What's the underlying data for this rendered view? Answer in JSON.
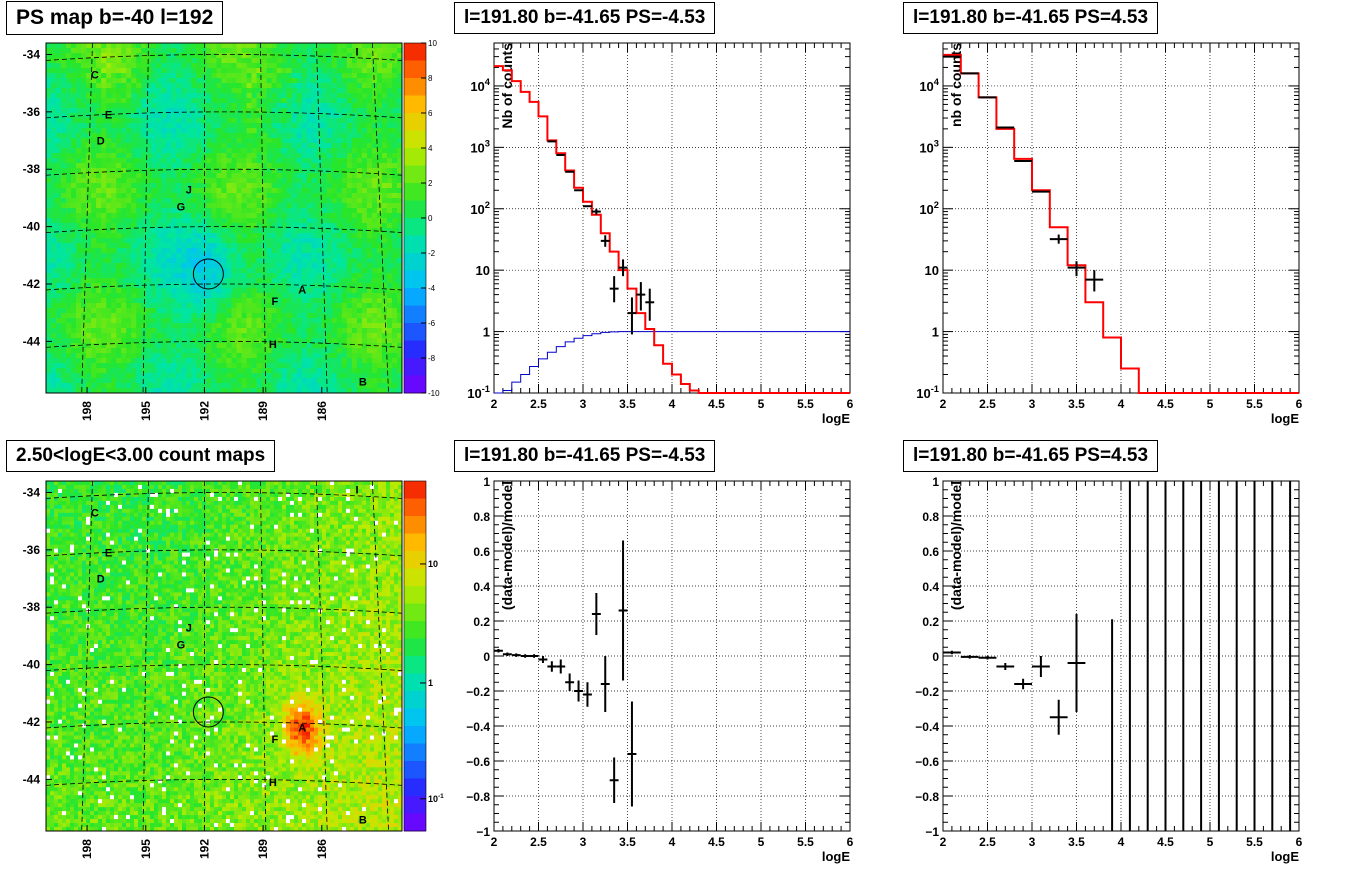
{
  "titles": {
    "map_top": "PS map b=-40 l=192",
    "spec_top_mid": "l=191.80 b=-41.65 PS=-4.53",
    "spec_top_right": "l=191.80 b=-41.65 PS=4.53",
    "map_bottom": "2.50<logE<3.00 count maps",
    "res_bottom_mid": "l=191.80 b=-41.65 PS=-4.53",
    "res_bottom_right": "l=191.80 b=-41.65 PS=4.53"
  },
  "colors": {
    "model": "#ff0000",
    "exposure": "#0000cc",
    "data": "#000000"
  },
  "chart_data": [
    {
      "id": "map_top",
      "type": "heatmap",
      "title": "PS map b=-40 l=192",
      "y_ticks": [
        "-34",
        "-36",
        "-38",
        "-40",
        "-42",
        "-44"
      ],
      "x_ticks": [
        "198",
        "195",
        "192",
        "189",
        "186"
      ],
      "colorbar_ticks": [
        "10",
        "8",
        "6",
        "4",
        "2",
        "0",
        "-2",
        "-4",
        "-6",
        "-8",
        "-10"
      ],
      "colorbar_range": [
        -10,
        10
      ],
      "sources": [
        {
          "label": "C",
          "l": 197.6,
          "b": -34.7
        },
        {
          "label": "E",
          "l": 196.9,
          "b": -36.1
        },
        {
          "label": "D",
          "l": 197.3,
          "b": -37.0
        },
        {
          "label": "J",
          "l": 192.8,
          "b": -38.7
        },
        {
          "label": "G",
          "l": 193.2,
          "b": -39.3
        },
        {
          "label": "A",
          "l": 187.0,
          "b": -42.2
        },
        {
          "label": "F",
          "l": 188.4,
          "b": -42.6
        },
        {
          "label": "H",
          "l": 188.5,
          "b": -44.1
        },
        {
          "label": "B",
          "l": 183.9,
          "b": -45.4
        },
        {
          "label": "I",
          "l": 184.2,
          "b": -33.9
        }
      ],
      "circle": {
        "l": 191.8,
        "b": -41.65
      }
    },
    {
      "id": "spec_top_mid",
      "type": "line",
      "title": "l=191.80 b=-41.65 PS=-4.53",
      "xlabel": "logE",
      "ylabel": "Nb of counts",
      "xlim": [
        2,
        6
      ],
      "ylim": [
        0.1,
        50000
      ],
      "yscale": "log",
      "x_ticks": [
        "2",
        "2.5",
        "3",
        "3.5",
        "4",
        "4.5",
        "5",
        "5.5",
        "6"
      ],
      "y_ticks": [
        "10^-1",
        "1",
        "10",
        "10^2",
        "10^3",
        "10^4"
      ],
      "grid": true,
      "model_step": {
        "edges": [
          2.0,
          2.1,
          2.2,
          2.3,
          2.4,
          2.5,
          2.6,
          2.7,
          2.8,
          2.9,
          3.0,
          3.1,
          3.2,
          3.3,
          3.4,
          3.5,
          3.6,
          3.7,
          3.8,
          3.9,
          4.0,
          4.1,
          4.2,
          4.3,
          6.0
        ],
        "values": [
          21000,
          18000,
          12000,
          8000,
          5500,
          3200,
          1300,
          800,
          420,
          220,
          130,
          80,
          40,
          20,
          10,
          5,
          2,
          1.1,
          0.6,
          0.3,
          0.2,
          0.14,
          0.11,
          0.1
        ]
      },
      "exposure_step": {
        "edges": [
          2.0,
          2.1,
          2.2,
          2.3,
          2.4,
          2.5,
          2.6,
          2.7,
          2.8,
          2.9,
          3.0,
          3.1,
          3.2,
          3.3,
          3.4,
          6.0
        ],
        "values": [
          0.08,
          0.11,
          0.15,
          0.2,
          0.27,
          0.36,
          0.46,
          0.57,
          0.68,
          0.78,
          0.86,
          0.92,
          0.97,
          0.99,
          1.0
        ]
      },
      "data_points": [
        {
          "x": 2.65,
          "y": 1250,
          "xerr": 0.05,
          "ylo": 1250,
          "yhi": 1250
        },
        {
          "x": 2.75,
          "y": 750,
          "xerr": 0.05,
          "ylo": 750,
          "yhi": 750
        },
        {
          "x": 2.85,
          "y": 400,
          "xerr": 0.05,
          "ylo": 400,
          "yhi": 400
        },
        {
          "x": 2.95,
          "y": 200,
          "xerr": 0.05,
          "ylo": 200,
          "yhi": 200
        },
        {
          "x": 3.05,
          "y": 110,
          "xerr": 0.05,
          "ylo": 110,
          "yhi": 110
        },
        {
          "x": 3.15,
          "y": 90,
          "xerr": 0.05,
          "ylo": 80,
          "yhi": 100
        },
        {
          "x": 3.25,
          "y": 30,
          "xerr": 0.05,
          "ylo": 24,
          "yhi": 37
        },
        {
          "x": 3.35,
          "y": 5,
          "xerr": 0.05,
          "ylo": 3,
          "yhi": 8
        },
        {
          "x": 3.45,
          "y": 11,
          "xerr": 0.05,
          "ylo": 8,
          "yhi": 15
        },
        {
          "x": 3.55,
          "y": 2,
          "xerr": 0.05,
          "ylo": 0.9,
          "yhi": 3.6
        },
        {
          "x": 3.65,
          "y": 4,
          "xerr": 0.05,
          "ylo": 2.2,
          "yhi": 6.4
        },
        {
          "x": 3.75,
          "y": 3,
          "xerr": 0.05,
          "ylo": 1.5,
          "yhi": 5
        }
      ]
    },
    {
      "id": "spec_top_right",
      "type": "line",
      "title": "l=191.80 b=-41.65 PS=4.53",
      "xlabel": "logE",
      "ylabel": "nb of counts",
      "xlim": [
        2,
        6
      ],
      "ylim": [
        0.1,
        50000
      ],
      "yscale": "log",
      "x_ticks": [
        "2",
        "2.5",
        "3",
        "3.5",
        "4",
        "4.5",
        "5",
        "5.5",
        "6"
      ],
      "y_ticks": [
        "10^-1",
        "1",
        "10",
        "10^2",
        "10^3",
        "10^4"
      ],
      "grid": true,
      "model_step": {
        "edges": [
          2.0,
          2.2,
          2.4,
          2.6,
          2.8,
          3.0,
          3.2,
          3.4,
          3.6,
          3.8,
          4.0,
          4.2,
          6.0
        ],
        "values": [
          32000,
          16000,
          6500,
          2000,
          650,
          200,
          50,
          12,
          3,
          0.8,
          0.25,
          0.1
        ]
      },
      "data_points": [
        {
          "x": 2.1,
          "y": 30000,
          "xerr": 0.1,
          "ylo": 30000,
          "yhi": 30000
        },
        {
          "x": 2.3,
          "y": 16000,
          "xerr": 0.1,
          "ylo": 16000,
          "yhi": 16000
        },
        {
          "x": 2.5,
          "y": 6500,
          "xerr": 0.1,
          "ylo": 6500,
          "yhi": 6500
        },
        {
          "x": 2.7,
          "y": 2100,
          "xerr": 0.1,
          "ylo": 2100,
          "yhi": 2100
        },
        {
          "x": 2.9,
          "y": 600,
          "xerr": 0.1,
          "ylo": 600,
          "yhi": 600
        },
        {
          "x": 3.1,
          "y": 190,
          "xerr": 0.1,
          "ylo": 190,
          "yhi": 190
        },
        {
          "x": 3.3,
          "y": 32,
          "xerr": 0.1,
          "ylo": 27,
          "yhi": 38
        },
        {
          "x": 3.5,
          "y": 11,
          "xerr": 0.1,
          "ylo": 8,
          "yhi": 14
        },
        {
          "x": 3.7,
          "y": 7,
          "xerr": 0.1,
          "ylo": 4.5,
          "yhi": 10
        }
      ]
    },
    {
      "id": "map_bottom",
      "type": "heatmap",
      "title": "2.50<logE<3.00 count maps",
      "y_ticks": [
        "-34",
        "-36",
        "-38",
        "-40",
        "-42",
        "-44"
      ],
      "x_ticks": [
        "198",
        "195",
        "192",
        "189",
        "186"
      ],
      "colorbar_ticks": [
        "10",
        "1",
        "10^-1"
      ],
      "colorbar_scale": "log",
      "sources": [
        {
          "label": "C",
          "l": 197.6,
          "b": -34.7
        },
        {
          "label": "E",
          "l": 196.9,
          "b": -36.1
        },
        {
          "label": "D",
          "l": 197.3,
          "b": -37.0
        },
        {
          "label": "J",
          "l": 192.8,
          "b": -38.7
        },
        {
          "label": "G",
          "l": 193.2,
          "b": -39.3
        },
        {
          "label": "A",
          "l": 187.0,
          "b": -42.2
        },
        {
          "label": "F",
          "l": 188.4,
          "b": -42.6
        },
        {
          "label": "H",
          "l": 188.5,
          "b": -44.1
        },
        {
          "label": "B",
          "l": 183.9,
          "b": -45.4
        },
        {
          "label": "I",
          "l": 184.2,
          "b": -33.9
        }
      ],
      "circle": {
        "l": 191.8,
        "b": -41.65
      }
    },
    {
      "id": "res_bottom_mid",
      "type": "scatter",
      "title": "l=191.80 b=-41.65 PS=-4.53",
      "xlabel": "logE",
      "ylabel": "(data-model)/model",
      "xlim": [
        2,
        6
      ],
      "ylim": [
        -1,
        1
      ],
      "x_ticks": [
        "2",
        "2.5",
        "3",
        "3.5",
        "4",
        "4.5",
        "5",
        "5.5",
        "6"
      ],
      "y_ticks": [
        "−1",
        "−0.8",
        "−0.6",
        "−0.4",
        "−0.2",
        "0",
        "0.2",
        "0.4",
        "0.6",
        "0.8",
        "1"
      ],
      "grid": true,
      "data_points": [
        {
          "x": 2.05,
          "y": 0.03,
          "xerr": 0.05,
          "yerr": 0.01
        },
        {
          "x": 2.15,
          "y": 0.01,
          "xerr": 0.05,
          "yerr": 0.01
        },
        {
          "x": 2.25,
          "y": 0.005,
          "xerr": 0.05,
          "yerr": 0.01
        },
        {
          "x": 2.35,
          "y": 0.0,
          "xerr": 0.05,
          "yerr": 0.01
        },
        {
          "x": 2.45,
          "y": 0.0,
          "xerr": 0.05,
          "yerr": 0.01
        },
        {
          "x": 2.55,
          "y": -0.02,
          "xerr": 0.05,
          "yerr": 0.02
        },
        {
          "x": 2.65,
          "y": -0.06,
          "xerr": 0.05,
          "yerr": 0.03
        },
        {
          "x": 2.75,
          "y": -0.06,
          "xerr": 0.05,
          "yerr": 0.04
        },
        {
          "x": 2.85,
          "y": -0.15,
          "xerr": 0.05,
          "yerr": 0.05
        },
        {
          "x": 2.95,
          "y": -0.2,
          "xerr": 0.05,
          "yerr": 0.06
        },
        {
          "x": 3.05,
          "y": -0.22,
          "xerr": 0.05,
          "yerr": 0.07
        },
        {
          "x": 3.15,
          "y": 0.24,
          "xerr": 0.05,
          "yerr": 0.12
        },
        {
          "x": 3.25,
          "y": -0.16,
          "xerr": 0.05,
          "yerr": 0.16
        },
        {
          "x": 3.35,
          "y": -0.71,
          "xerr": 0.05,
          "yerr": 0.13
        },
        {
          "x": 3.45,
          "y": 0.26,
          "xerr": 0.05,
          "yerr": 0.4
        },
        {
          "x": 3.55,
          "y": -0.56,
          "xerr": 0.05,
          "yerr": 0.3
        }
      ]
    },
    {
      "id": "res_bottom_right",
      "type": "scatter",
      "title": "l=191.80 b=-41.65 PS=4.53",
      "xlabel": "logE",
      "ylabel": "(data-model)/model",
      "xlim": [
        2,
        6
      ],
      "ylim": [
        -1,
        1
      ],
      "x_ticks": [
        "2",
        "2.5",
        "3",
        "3.5",
        "4",
        "4.5",
        "5",
        "5.5",
        "6"
      ],
      "y_ticks": [
        "−1",
        "−0.8",
        "−0.6",
        "−0.4",
        "−0.2",
        "0",
        "0.2",
        "0.4",
        "0.6",
        "0.8",
        "1"
      ],
      "grid": true,
      "data_points": [
        {
          "x": 2.1,
          "y": 0.02,
          "xerr": 0.1,
          "yerr": 0.01
        },
        {
          "x": 2.3,
          "y": -0.005,
          "xerr": 0.1,
          "yerr": 0.01
        },
        {
          "x": 2.5,
          "y": -0.01,
          "xerr": 0.1,
          "yerr": 0.01
        },
        {
          "x": 2.7,
          "y": -0.06,
          "xerr": 0.1,
          "yerr": 0.02
        },
        {
          "x": 2.9,
          "y": -0.16,
          "xerr": 0.1,
          "yerr": 0.03
        },
        {
          "x": 3.1,
          "y": -0.06,
          "xerr": 0.1,
          "yerr": 0.06
        },
        {
          "x": 3.3,
          "y": -0.35,
          "xerr": 0.1,
          "yerr": 0.1
        },
        {
          "x": 3.5,
          "y": -0.04,
          "xerr": 0.1,
          "yerr": 0.28
        },
        {
          "x": 3.9,
          "y": 0.0,
          "xerr": 0.0,
          "yerr": 0.0,
          "ylo": -1,
          "yhi": 0.21
        },
        {
          "x": 4.1,
          "y": 0.0,
          "xerr": 0.0,
          "yerr": 0.0,
          "ylo": -1,
          "yhi": 1
        },
        {
          "x": 4.3,
          "y": 0.0,
          "xerr": 0.0,
          "yerr": 0.0,
          "ylo": -1,
          "yhi": 1
        },
        {
          "x": 4.5,
          "y": 0.0,
          "xerr": 0.0,
          "yerr": 0.0,
          "ylo": -1,
          "yhi": 1
        },
        {
          "x": 4.7,
          "y": 0.0,
          "xerr": 0.0,
          "yerr": 0.0,
          "ylo": -1,
          "yhi": 1
        },
        {
          "x": 4.9,
          "y": 0.0,
          "xerr": 0.0,
          "yerr": 0.0,
          "ylo": -1,
          "yhi": 1
        },
        {
          "x": 5.1,
          "y": 0.0,
          "xerr": 0.0,
          "yerr": 0.0,
          "ylo": -1,
          "yhi": 1
        },
        {
          "x": 5.3,
          "y": 0.0,
          "xerr": 0.0,
          "yerr": 0.0,
          "ylo": -1,
          "yhi": 1
        },
        {
          "x": 5.5,
          "y": 0.0,
          "xerr": 0.0,
          "yerr": 0.0,
          "ylo": -1,
          "yhi": 1
        },
        {
          "x": 5.7,
          "y": 0.0,
          "xerr": 0.0,
          "yerr": 0.0,
          "ylo": -1,
          "yhi": 1
        },
        {
          "x": 5.9,
          "y": 0.0,
          "xerr": 0.0,
          "yerr": 0.0,
          "ylo": -1,
          "yhi": 1
        }
      ]
    }
  ]
}
